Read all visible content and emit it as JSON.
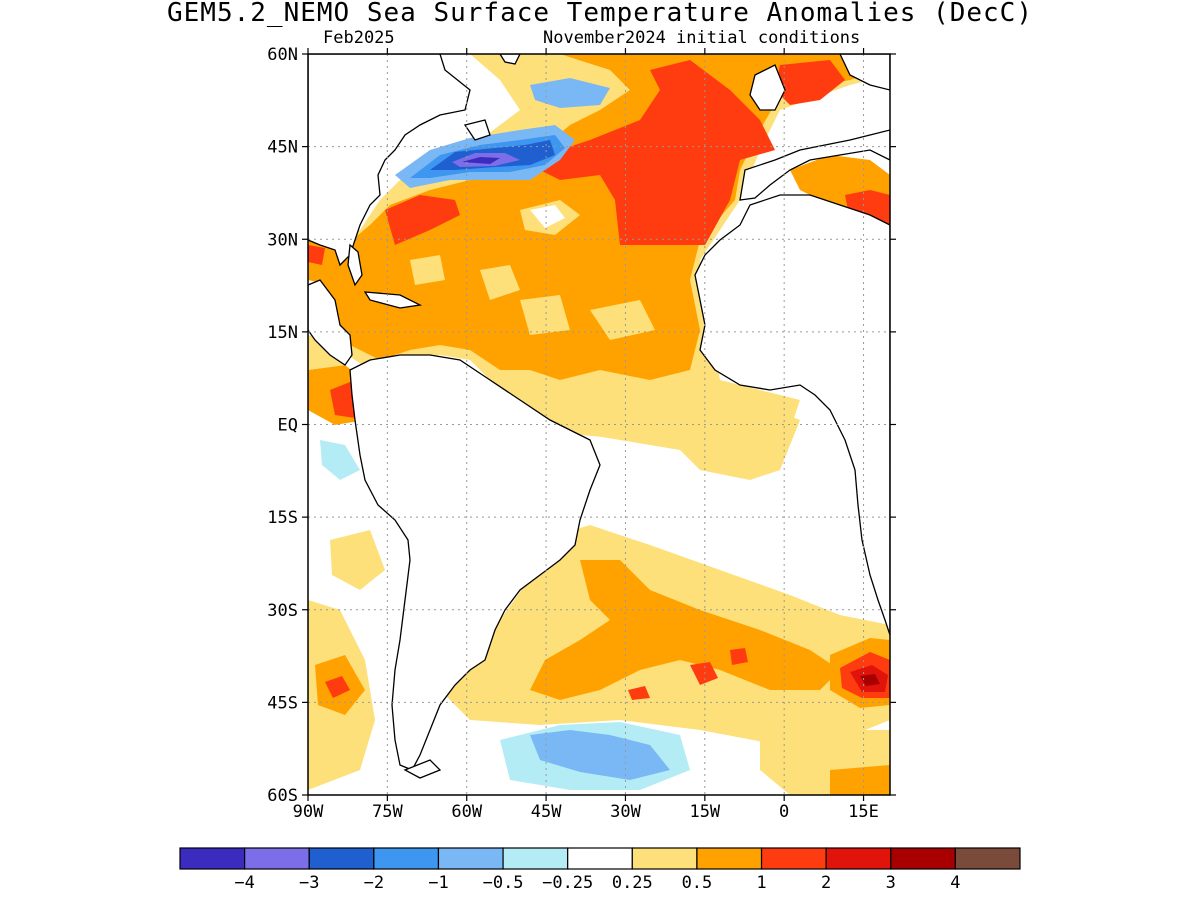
{
  "title": "GEM5.2_NEMO Sea Surface Temperature Anomalies (DecC)",
  "valid_month": "Feb2025",
  "init_conditions": "November2024 initial conditions",
  "map": {
    "region": "Atlantic Ocean",
    "lon_range": [
      -90,
      20
    ],
    "lat_range": [
      -60,
      60
    ],
    "lat_ticks": [
      {
        "value": 60,
        "label": "60N"
      },
      {
        "value": 45,
        "label": "45N"
      },
      {
        "value": 30,
        "label": "30N"
      },
      {
        "value": 15,
        "label": "15N"
      },
      {
        "value": 0,
        "label": "EQ"
      },
      {
        "value": -15,
        "label": "15S"
      },
      {
        "value": -30,
        "label": "30S"
      },
      {
        "value": -45,
        "label": "45S"
      },
      {
        "value": -60,
        "label": "60S"
      }
    ],
    "lon_ticks": [
      {
        "value": -90,
        "label": "90W"
      },
      {
        "value": -75,
        "label": "75W"
      },
      {
        "value": -60,
        "label": "60W"
      },
      {
        "value": -45,
        "label": "45W"
      },
      {
        "value": -30,
        "label": "30W"
      },
      {
        "value": -15,
        "label": "15W"
      },
      {
        "value": 0,
        "label": "0"
      },
      {
        "value": 15,
        "label": "15E"
      }
    ],
    "gridlines": "dotted"
  },
  "colorbar": {
    "colors": [
      "#3b2bbf",
      "#7b6ee8",
      "#1f5fcf",
      "#3d96f0",
      "#7ab8f5",
      "#b4ecf6",
      "#ffffff",
      "#fde07a",
      "#ffa200",
      "#ff3b10",
      "#e0140a",
      "#a80000",
      "#7a4b3a"
    ],
    "labels": [
      "−4",
      "−3",
      "−2",
      "−1",
      "−0.5",
      "−0.25",
      "0.25",
      "0.5",
      "1",
      "2",
      "3",
      "4"
    ]
  }
}
